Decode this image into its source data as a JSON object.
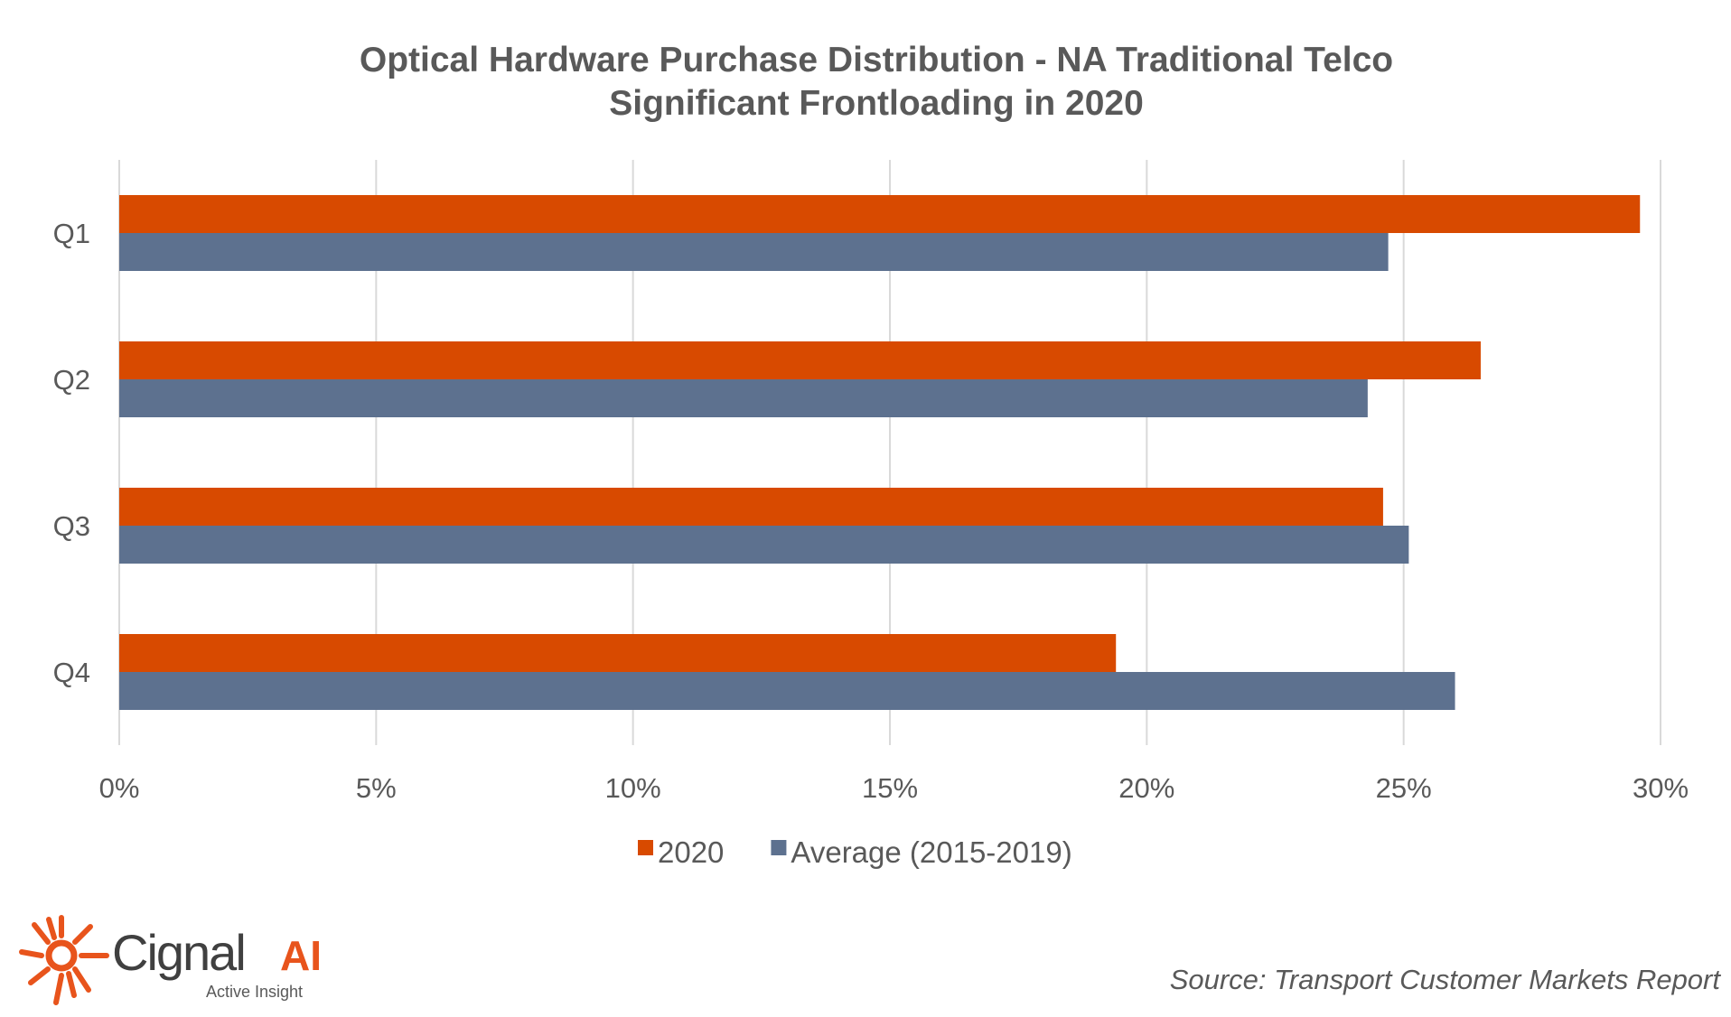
{
  "chart_data": {
    "type": "bar",
    "orientation": "horizontal",
    "title": "Optical Hardware Purchase Distribution - NA Traditional Telco",
    "subtitle": "Significant Frontloading in 2020",
    "categories": [
      "Q1",
      "Q2",
      "Q3",
      "Q4"
    ],
    "series": [
      {
        "name": "2020",
        "color": "#D84A00",
        "values": [
          29.6,
          26.5,
          24.6,
          19.4
        ]
      },
      {
        "name": "Average (2015-2019)",
        "color": "#5D718F",
        "values": [
          24.7,
          24.3,
          25.1,
          26.0
        ]
      }
    ],
    "xlim": [
      0,
      30
    ],
    "xticks": [
      0,
      5,
      10,
      15,
      20,
      25,
      30
    ],
    "xtick_labels": [
      "0%",
      "5%",
      "10%",
      "15%",
      "20%",
      "25%",
      "30%"
    ],
    "xlabel": "",
    "ylabel": "",
    "grid": "vertical",
    "legend": "bottom"
  },
  "footer": {
    "logo_text": "Cignal",
    "logo_ai": "AI",
    "logo_tagline": "Active Insight",
    "source": "Source: Transport Customer Markets Report"
  },
  "colors": {
    "text": "#595959",
    "grid": "#D9D9D9",
    "brand": "#E8541C"
  }
}
